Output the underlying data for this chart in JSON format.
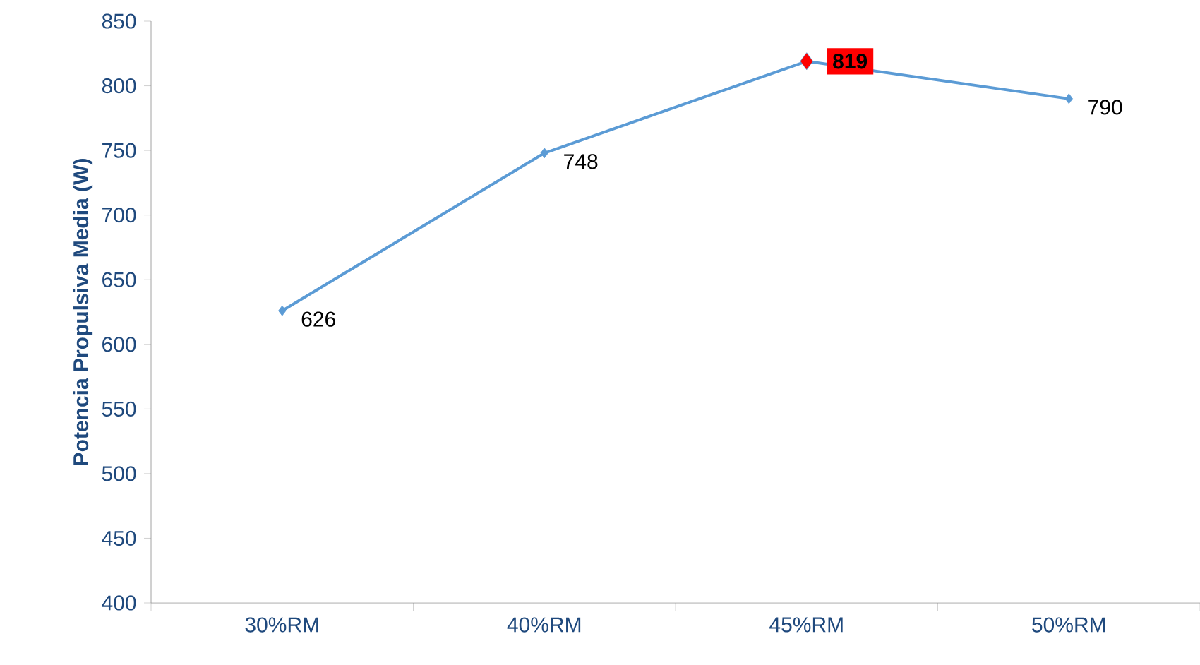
{
  "chart_data": {
    "type": "line",
    "ylabel": "Potencia Propulsiva Media (W)",
    "categories": [
      "30%RM",
      "40%RM",
      "45%RM",
      "50%RM"
    ],
    "values": [
      626,
      748,
      819,
      790
    ],
    "value_labels": [
      "626",
      "748",
      "**819**",
      "790"
    ],
    "color": "#5b9bd5",
    "colors": [
      "#5b9bd5",
      "#5b9bd5",
      "#ff0000",
      "#5b9bd5"
    ],
    "marker": "diamond",
    "ylim": [
      400,
      850
    ],
    "yticks": [
      400,
      450,
      500,
      550,
      600,
      650,
      700,
      750,
      800,
      850
    ],
    "grid": false
  }
}
